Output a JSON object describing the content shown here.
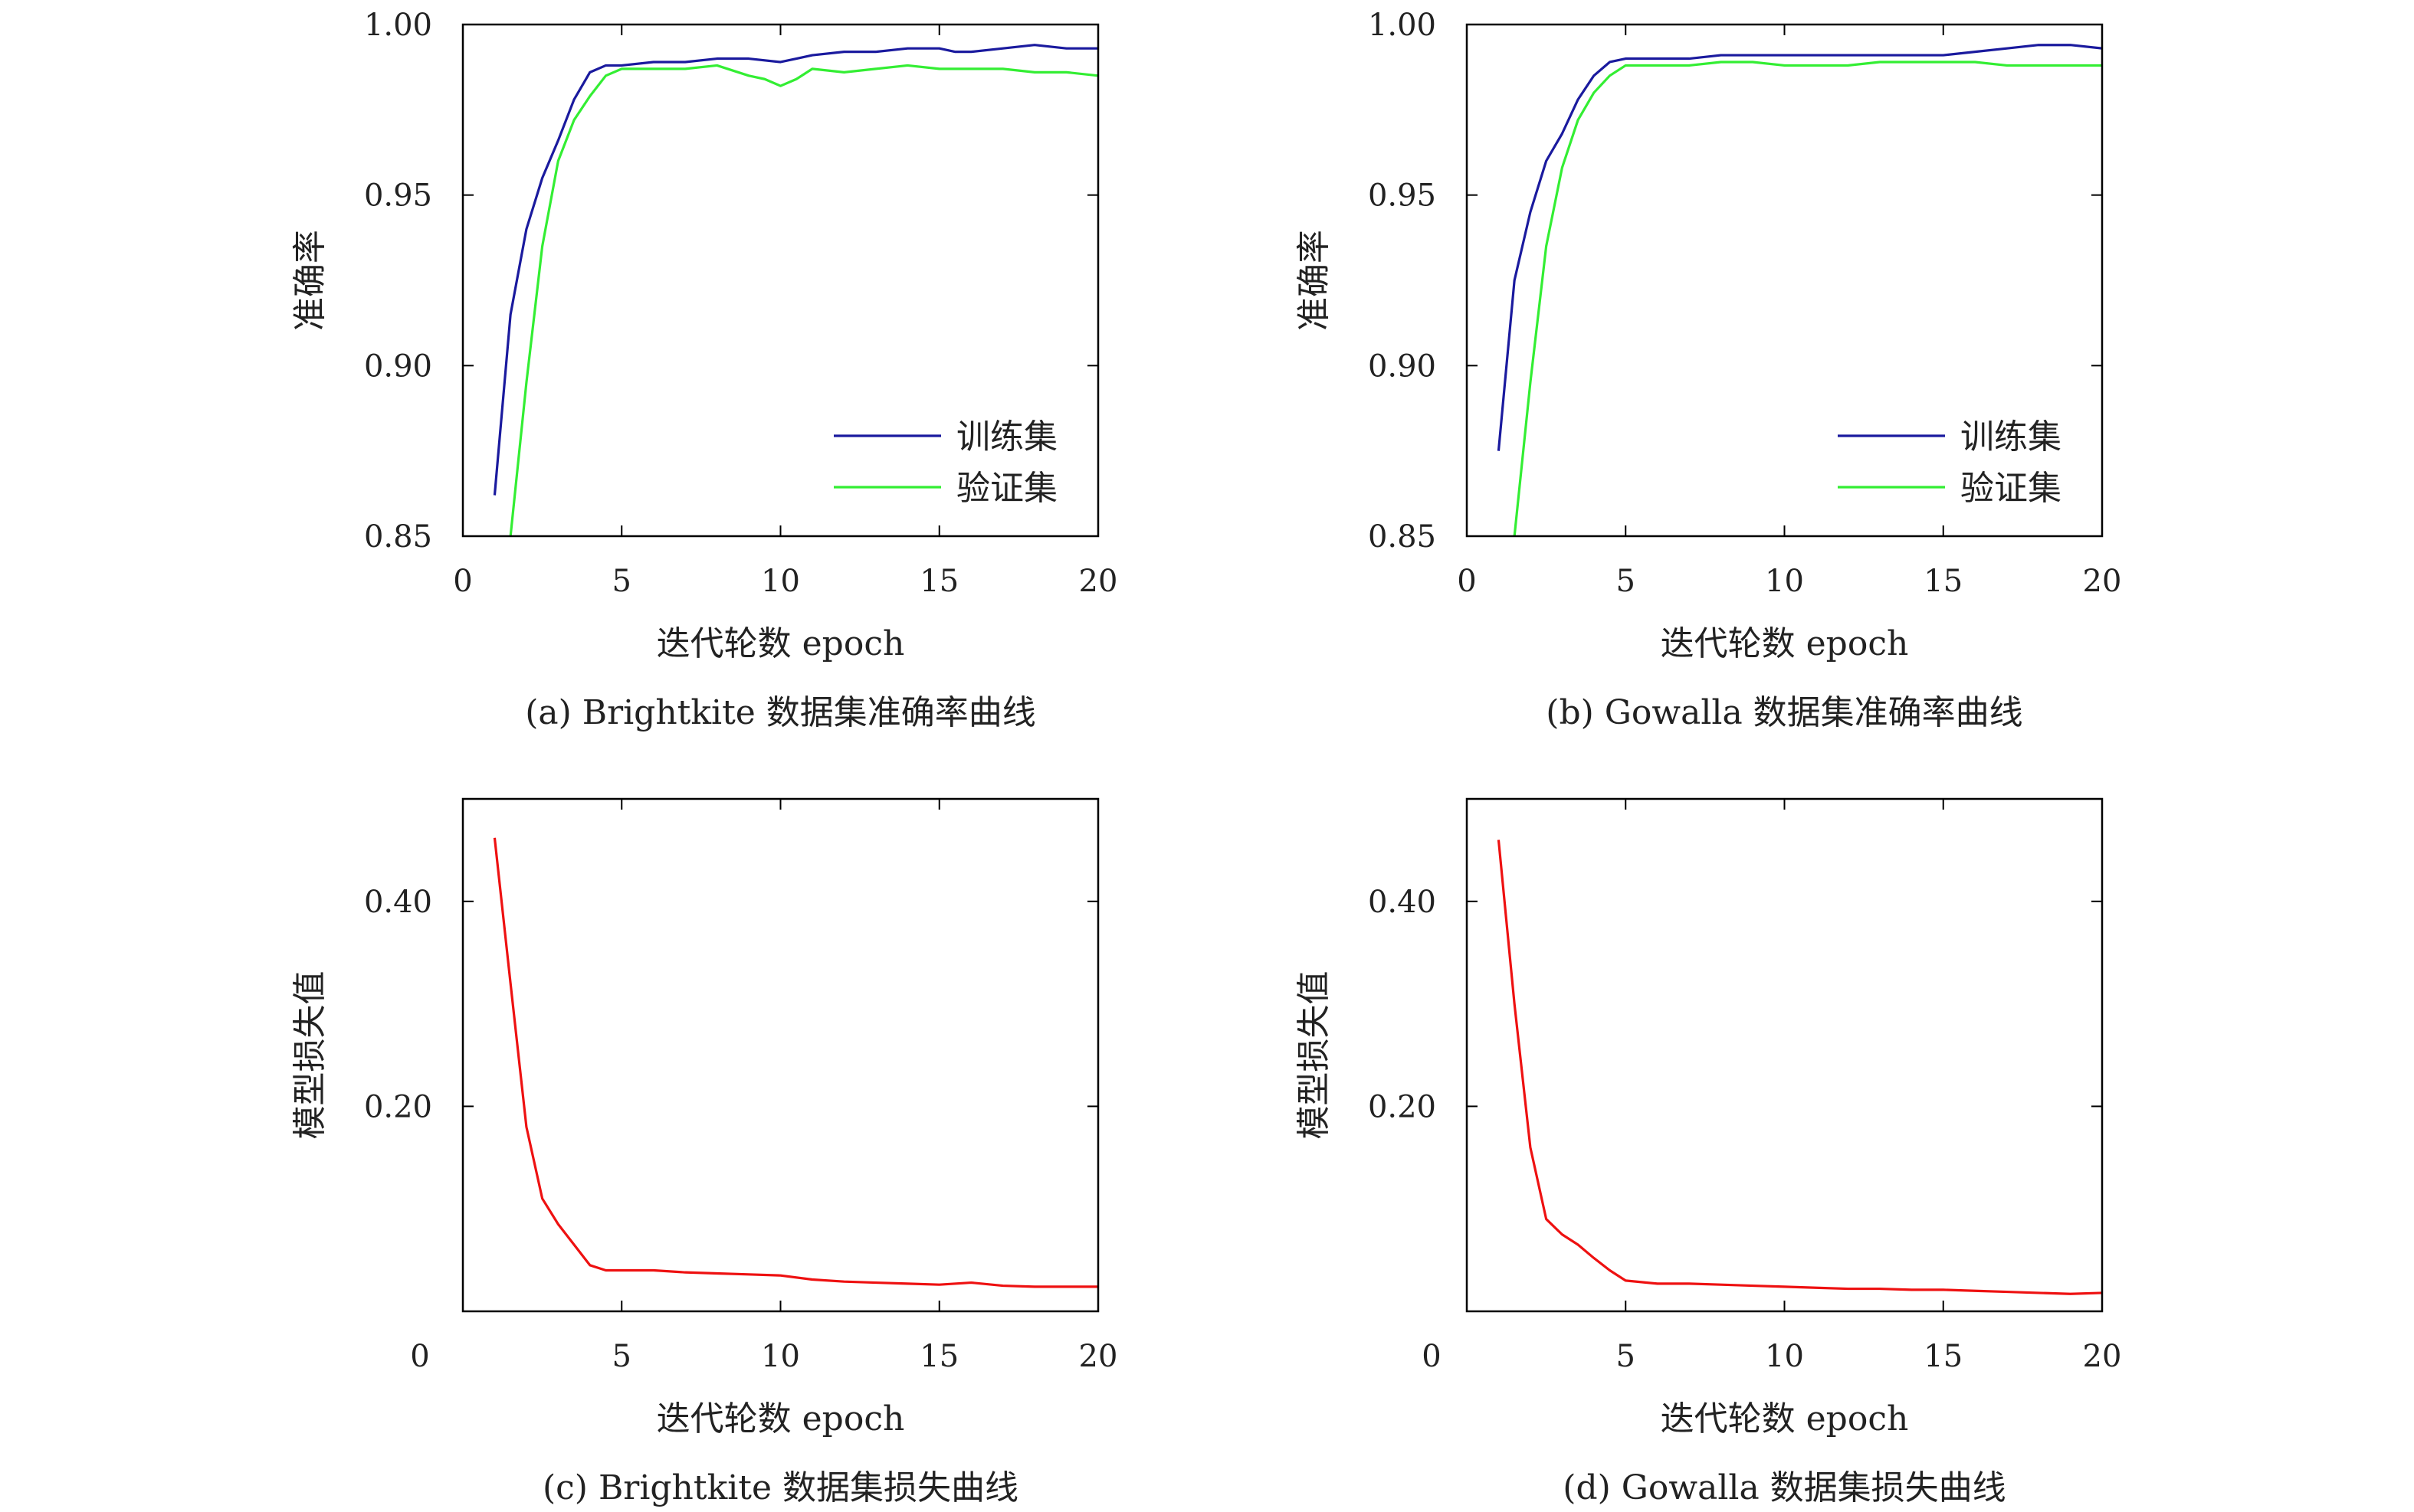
{
  "chart_data": [
    {
      "id": "a",
      "type": "line",
      "caption": "(a) Brightkite 数据集准确率曲线",
      "xlabel": "迭代轮数 epoch",
      "ylabel": "准确率",
      "xlim": [
        0,
        20
      ],
      "ylim": [
        0.85,
        1.0
      ],
      "xticks": [
        0,
        5,
        10,
        15,
        20
      ],
      "yticks": [
        0.85,
        0.9,
        0.95,
        1.0
      ],
      "xtick_labels": [
        "0",
        "5",
        "10",
        "15",
        "20"
      ],
      "ytick_labels": [
        "0.85",
        "0.90",
        "0.95",
        "1.00"
      ],
      "legend": "right",
      "grid": false,
      "series": [
        {
          "name": "训练集",
          "color": "#1a1a9e",
          "x": [
            1,
            1.5,
            2,
            2.5,
            3,
            3.5,
            4,
            4.5,
            5,
            6,
            7,
            8,
            9,
            10,
            10.5,
            11,
            12,
            13,
            14,
            15,
            15.5,
            16,
            17,
            18,
            19,
            20
          ],
          "y": [
            0.862,
            0.915,
            0.94,
            0.955,
            0.966,
            0.978,
            0.986,
            0.988,
            0.988,
            0.989,
            0.989,
            0.99,
            0.99,
            0.989,
            0.99,
            0.991,
            0.992,
            0.992,
            0.993,
            0.993,
            0.992,
            0.992,
            0.993,
            0.994,
            0.993,
            0.993
          ]
        },
        {
          "name": "验证集",
          "color": "#33ee33",
          "x": [
            1.5,
            2,
            2.5,
            3,
            3.5,
            4,
            4.5,
            5,
            6,
            7,
            8,
            9,
            9.5,
            10,
            10.5,
            11,
            12,
            13,
            14,
            15,
            16,
            17,
            18,
            19,
            20
          ],
          "y": [
            0.85,
            0.895,
            0.935,
            0.96,
            0.972,
            0.979,
            0.985,
            0.987,
            0.987,
            0.987,
            0.988,
            0.985,
            0.984,
            0.982,
            0.984,
            0.987,
            0.986,
            0.987,
            0.988,
            0.987,
            0.987,
            0.987,
            0.986,
            0.986,
            0.985
          ]
        }
      ]
    },
    {
      "id": "b",
      "type": "line",
      "caption": "(b) Gowalla 数据集准确率曲线",
      "xlabel": "迭代轮数 epoch",
      "ylabel": "准确率",
      "xlim": [
        0,
        20
      ],
      "ylim": [
        0.85,
        1.0
      ],
      "xticks": [
        0,
        5,
        10,
        15,
        20
      ],
      "yticks": [
        0.85,
        0.9,
        0.95,
        1.0
      ],
      "xtick_labels": [
        "0",
        "5",
        "10",
        "15",
        "20"
      ],
      "ytick_labels": [
        "0.85",
        "0.90",
        "0.95",
        "1.00"
      ],
      "legend": "right",
      "grid": false,
      "series": [
        {
          "name": "训练集",
          "color": "#1a1a9e",
          "x": [
            1,
            1.5,
            2,
            2.5,
            3,
            3.5,
            4,
            4.5,
            5,
            6,
            7,
            8,
            9,
            10,
            11,
            12,
            13,
            14,
            15,
            16,
            17,
            18,
            19,
            20
          ],
          "y": [
            0.875,
            0.925,
            0.945,
            0.96,
            0.968,
            0.978,
            0.985,
            0.989,
            0.99,
            0.99,
            0.99,
            0.991,
            0.991,
            0.991,
            0.991,
            0.991,
            0.991,
            0.991,
            0.991,
            0.992,
            0.993,
            0.994,
            0.994,
            0.993
          ]
        },
        {
          "name": "验证集",
          "color": "#33ee33",
          "x": [
            1.5,
            2,
            2.5,
            3,
            3.5,
            4,
            4.5,
            5,
            6,
            7,
            8,
            9,
            10,
            11,
            12,
            13,
            14,
            15,
            16,
            17,
            18,
            19,
            20
          ],
          "y": [
            0.85,
            0.895,
            0.935,
            0.958,
            0.972,
            0.98,
            0.985,
            0.988,
            0.988,
            0.988,
            0.989,
            0.989,
            0.988,
            0.988,
            0.988,
            0.989,
            0.989,
            0.989,
            0.989,
            0.988,
            0.988,
            0.988,
            0.988
          ]
        }
      ]
    },
    {
      "id": "c",
      "type": "line",
      "caption": "(c) Brightkite 数据集损失曲线",
      "xlabel": "迭代轮数 epoch",
      "ylabel": "模型损失值",
      "xlim": [
        0,
        20
      ],
      "ylim": [
        0,
        0.5
      ],
      "xticks": [
        0,
        5,
        10,
        15,
        20
      ],
      "yticks": [
        0.2,
        0.4
      ],
      "xtick_labels": [
        "0",
        "5",
        "10",
        "15",
        "20"
      ],
      "ytick_labels": [
        "0.20",
        "0.40"
      ],
      "grid": false,
      "series": [
        {
          "color": "#ee1111",
          "x": [
            1,
            1.5,
            2,
            2.5,
            3,
            3.5,
            4,
            4.5,
            5,
            6,
            7,
            8,
            9,
            10,
            11,
            12,
            13,
            14,
            15,
            16,
            17,
            18,
            19,
            20
          ],
          "y": [
            0.462,
            0.32,
            0.18,
            0.11,
            0.085,
            0.065,
            0.045,
            0.04,
            0.04,
            0.04,
            0.038,
            0.037,
            0.036,
            0.035,
            0.031,
            0.029,
            0.028,
            0.027,
            0.026,
            0.028,
            0.025,
            0.024,
            0.024,
            0.024
          ]
        }
      ]
    },
    {
      "id": "d",
      "type": "line",
      "caption": "(d) Gowalla 数据集损失曲线",
      "xlabel": "迭代轮数 epoch",
      "ylabel": "模型损失值",
      "xlim": [
        0,
        20
      ],
      "ylim": [
        0,
        0.5
      ],
      "xticks": [
        0,
        5,
        10,
        15,
        20
      ],
      "yticks": [
        0.2,
        0.4
      ],
      "xtick_labels": [
        "0",
        "5",
        "10",
        "15",
        "20"
      ],
      "ytick_labels": [
        "0.20",
        "0.40"
      ],
      "grid": false,
      "series": [
        {
          "color": "#ee1111",
          "x": [
            1,
            1.5,
            2,
            2.5,
            3,
            3.5,
            4,
            4.5,
            5,
            6,
            7,
            8,
            9,
            10,
            11,
            12,
            13,
            14,
            15,
            16,
            17,
            18,
            19,
            20
          ],
          "y": [
            0.46,
            0.3,
            0.16,
            0.09,
            0.075,
            0.065,
            0.052,
            0.04,
            0.03,
            0.027,
            0.027,
            0.026,
            0.025,
            0.024,
            0.023,
            0.022,
            0.022,
            0.021,
            0.021,
            0.02,
            0.019,
            0.018,
            0.017,
            0.018
          ]
        }
      ]
    }
  ]
}
